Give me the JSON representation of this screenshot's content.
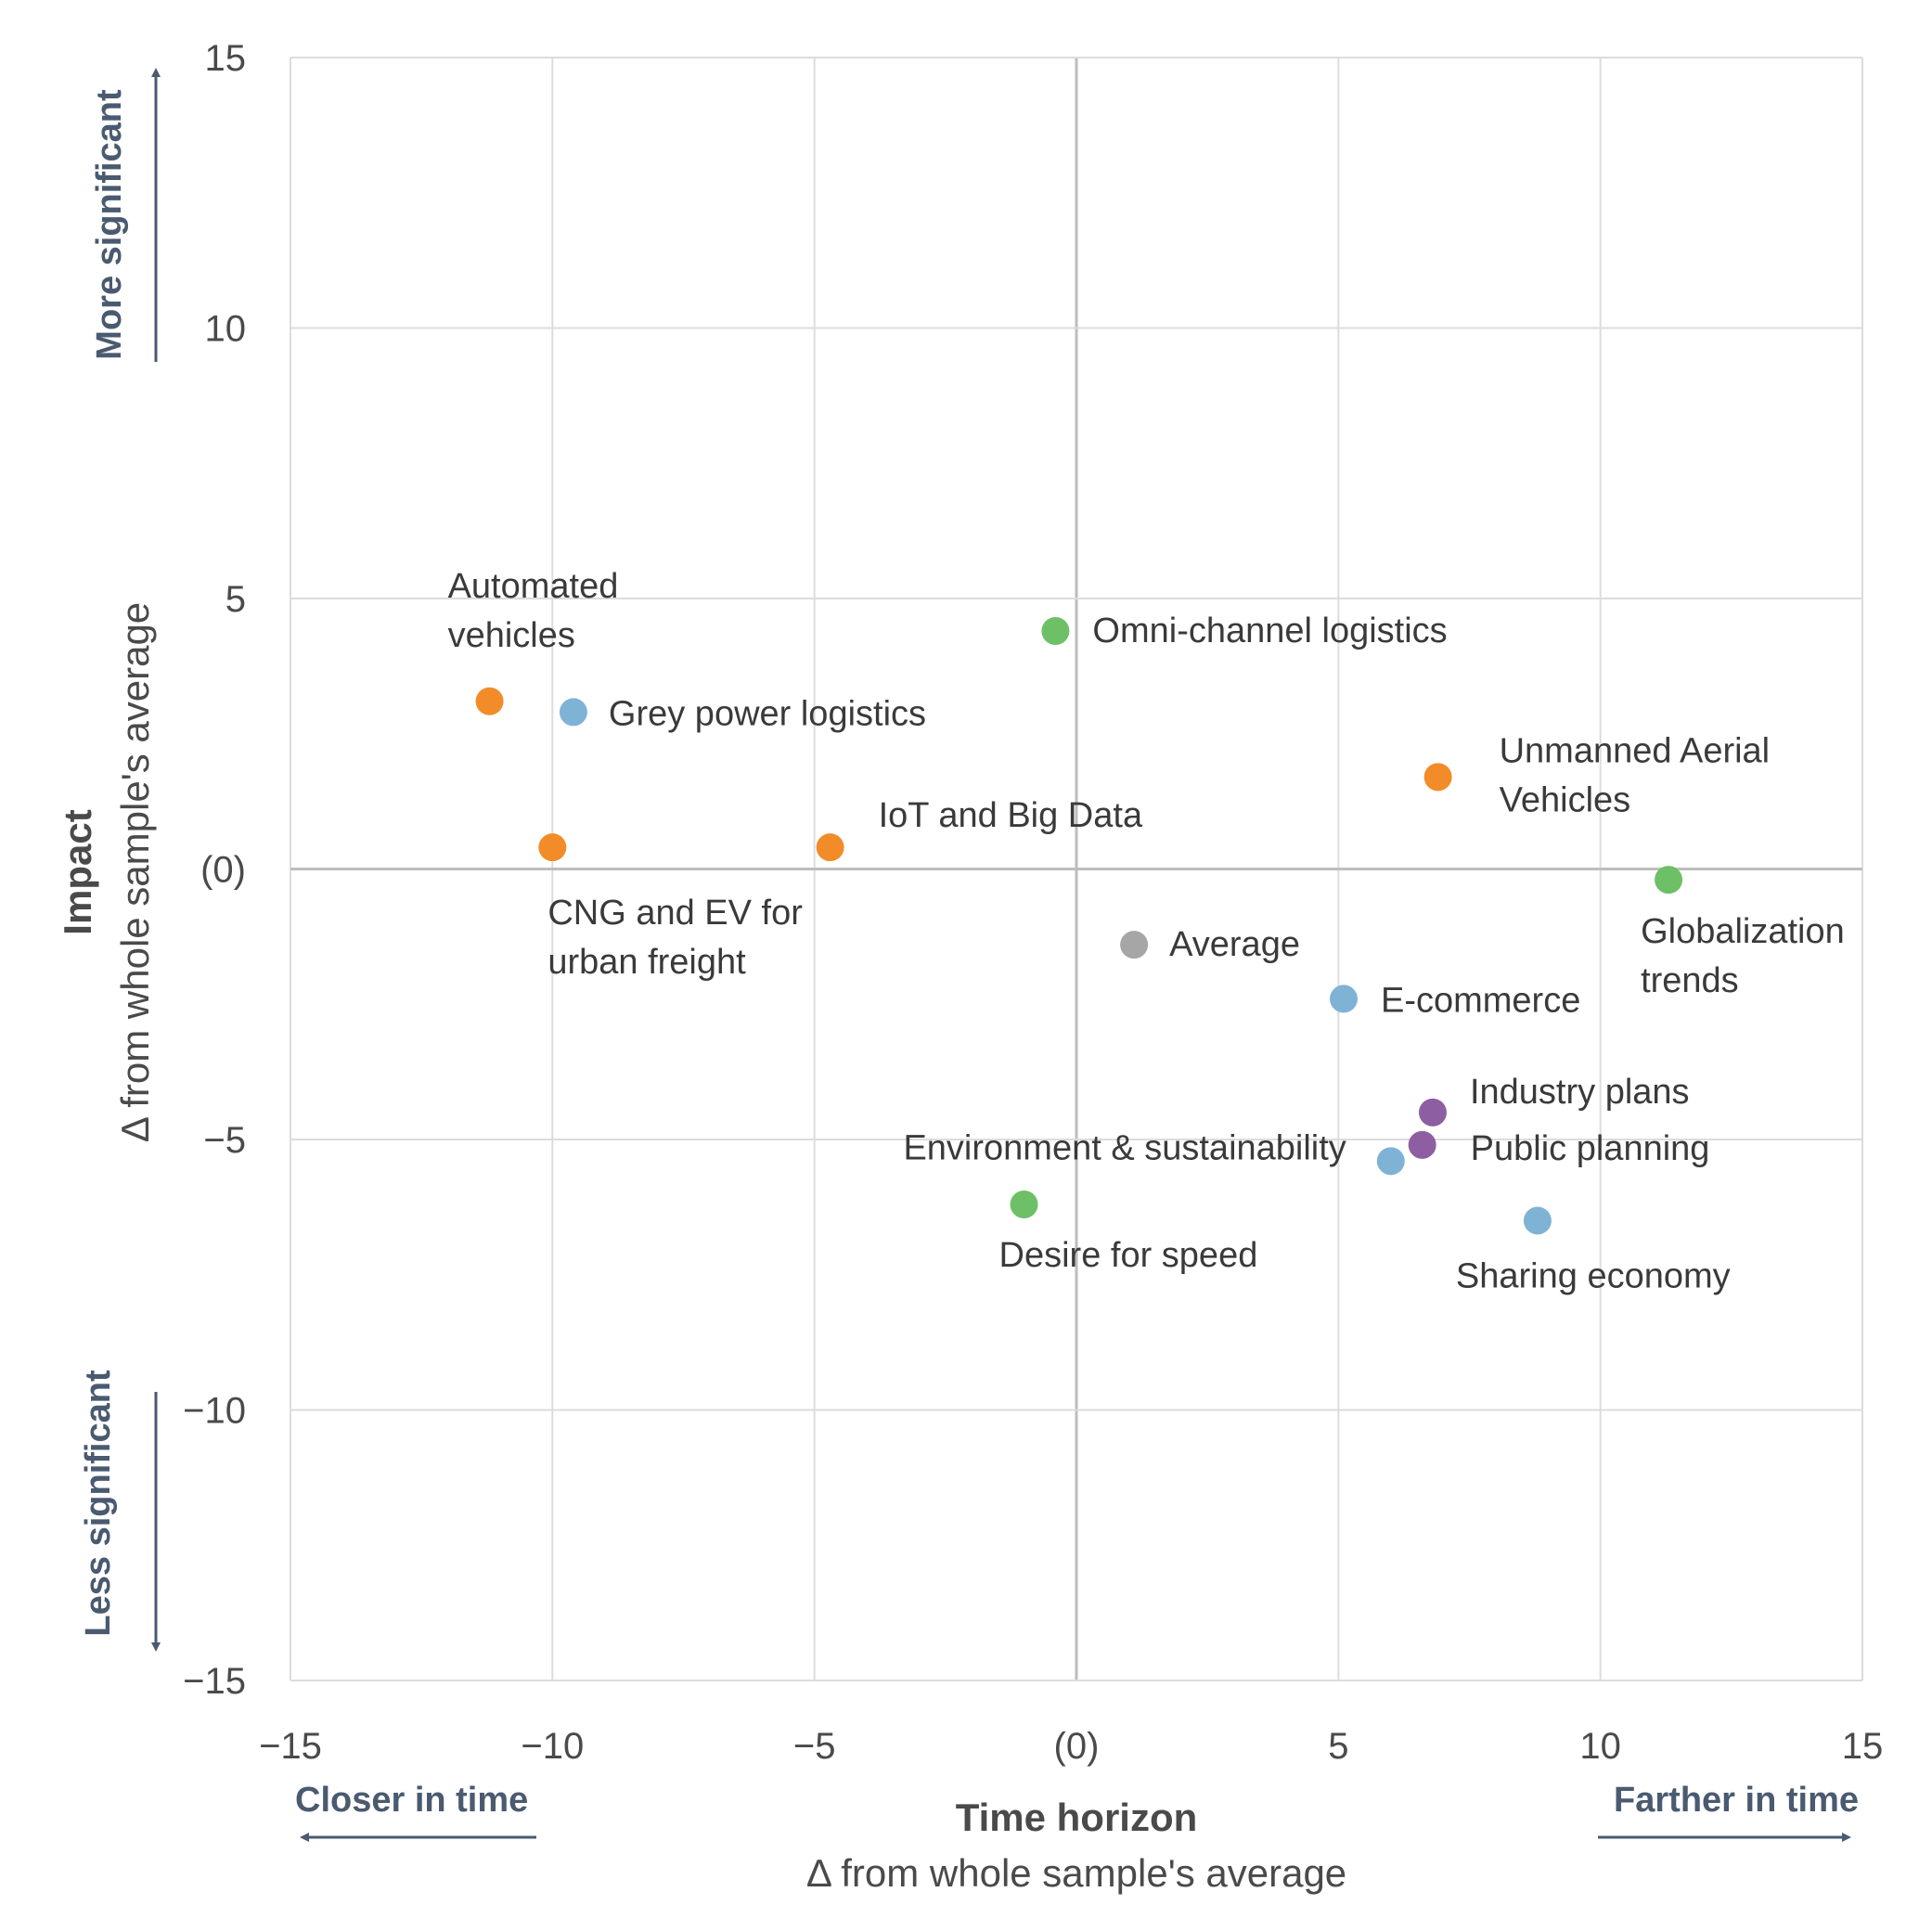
{
  "chart_data": {
    "type": "scatter",
    "xlabel": "Time horizon",
    "xlabel_sub": "Δ from whole sample's average",
    "ylabel": "Impact",
    "ylabel_sub": "Δ from whole sample's average",
    "xlim": [
      -15,
      15
    ],
    "ylim": [
      -15,
      15
    ],
    "x_ticks": [
      "−15",
      "−10",
      "−5",
      "(0)",
      "5",
      "10",
      "15"
    ],
    "y_ticks": [
      "15",
      "10",
      "5",
      "(0)",
      "−5",
      "−10",
      "−15"
    ],
    "grid": true,
    "annotations": {
      "closer": "Closer in time",
      "farther": "Farther in time",
      "more": "More significant",
      "less": "Less significant"
    },
    "colors": {
      "orange": "#f28c28",
      "blue": "#7fb3d5",
      "green": "#6dc066",
      "gray": "#a6a6a6",
      "purple": "#8e5ea2"
    },
    "points": [
      {
        "label": [
          "Automated",
          "vehicles"
        ],
        "x": -11.2,
        "y": 3.1,
        "color": "orange"
      },
      {
        "label": [
          "Grey power logistics"
        ],
        "x": -9.6,
        "y": 2.9,
        "color": "blue"
      },
      {
        "label": [
          "CNG and EV for",
          "urban freight"
        ],
        "x": -10.0,
        "y": 0.4,
        "color": "orange"
      },
      {
        "label": [
          "IoT and Big Data"
        ],
        "x": -4.7,
        "y": 0.4,
        "color": "orange"
      },
      {
        "label": [
          "Omni-channel logistics"
        ],
        "x": -0.4,
        "y": 4.4,
        "color": "green"
      },
      {
        "label": [
          "Unmanned Aerial",
          "Vehicles"
        ],
        "x": 6.9,
        "y": 1.7,
        "color": "orange"
      },
      {
        "label": [
          "Globalization",
          "trends"
        ],
        "x": 11.3,
        "y": -0.2,
        "color": "green"
      },
      {
        "label": [
          "Average"
        ],
        "x": 1.1,
        "y": -1.4,
        "color": "gray"
      },
      {
        "label": [
          "E-commerce"
        ],
        "x": 5.1,
        "y": -2.4,
        "color": "blue"
      },
      {
        "label": [
          "Industry plans"
        ],
        "x": 6.8,
        "y": -4.5,
        "color": "purple"
      },
      {
        "label": [
          "Public planning"
        ],
        "x": 6.6,
        "y": -5.1,
        "color": "purple"
      },
      {
        "label": [
          "Environment & sustainability"
        ],
        "x": 6.0,
        "y": -5.4,
        "color": "blue"
      },
      {
        "label": [
          "Desire for speed"
        ],
        "x": -1.0,
        "y": -6.2,
        "color": "green"
      },
      {
        "label": [
          "Sharing economy"
        ],
        "x": 8.8,
        "y": -6.5,
        "color": "blue"
      }
    ]
  }
}
